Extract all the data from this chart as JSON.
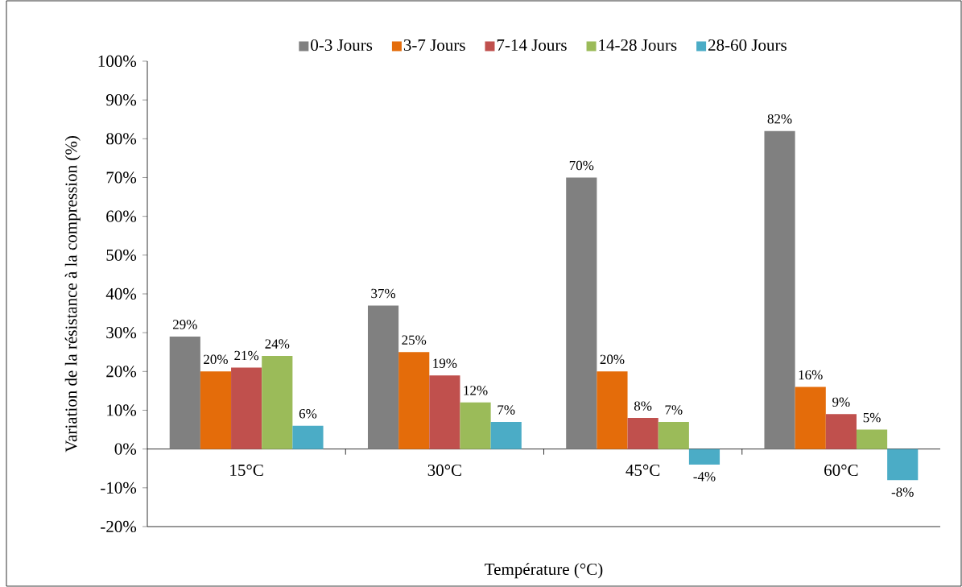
{
  "chart_data": {
    "type": "bar",
    "xlabel": "Température (°C)",
    "ylabel": "Variation de la résistance à la compression (%)",
    "categories": [
      "15°C",
      "30°C",
      "45°C",
      "60°C"
    ],
    "series": [
      {
        "name": "0-3 Jours",
        "color": "#808080",
        "values": [
          29,
          37,
          70,
          82
        ],
        "value_labels": [
          "29%",
          "37%",
          "70%",
          "82%"
        ]
      },
      {
        "name": "3-7 Jours",
        "color": "#e46c0a",
        "values": [
          20,
          25,
          20,
          16
        ],
        "value_labels": [
          "20%",
          "25%",
          "20%",
          "16%"
        ]
      },
      {
        "name": "7-14 Jours",
        "color": "#c0504d",
        "values": [
          21,
          19,
          8,
          9
        ],
        "value_labels": [
          "21%",
          "19%",
          "8%",
          "9%"
        ]
      },
      {
        "name": "14-28 Jours",
        "color": "#9bbb59",
        "values": [
          24,
          12,
          7,
          5
        ],
        "value_labels": [
          "24%",
          "12%",
          "7%",
          "5%"
        ]
      },
      {
        "name": "28-60 Jours",
        "color": "#4bacc6",
        "values": [
          6,
          7,
          -4,
          -8
        ],
        "value_labels": [
          "6%",
          "7%",
          "-4%",
          "-8%"
        ]
      }
    ],
    "ylim": [
      -20,
      100
    ],
    "yticks": [
      {
        "value": -20,
        "label": "-20%"
      },
      {
        "value": -10,
        "label": "-10%"
      },
      {
        "value": 0,
        "label": "0%"
      },
      {
        "value": 10,
        "label": "10%"
      },
      {
        "value": 20,
        "label": "20%"
      },
      {
        "value": 30,
        "label": "30%"
      },
      {
        "value": 40,
        "label": "40%"
      },
      {
        "value": 50,
        "label": "50%"
      },
      {
        "value": 60,
        "label": "60%"
      },
      {
        "value": 70,
        "label": "70%"
      },
      {
        "value": 80,
        "label": "80%"
      },
      {
        "value": 90,
        "label": "90%"
      },
      {
        "value": 100,
        "label": "100%"
      }
    ],
    "grid": false,
    "legend": "top"
  }
}
